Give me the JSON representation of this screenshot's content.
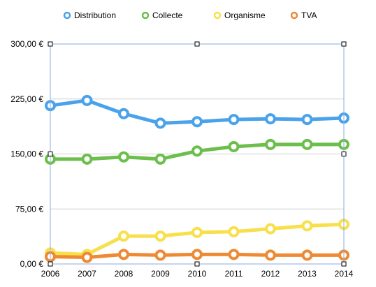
{
  "chart_data": {
    "type": "line",
    "x": [
      "2006",
      "2007",
      "2008",
      "2009",
      "2010",
      "2011",
      "2012",
      "2013",
      "2014"
    ],
    "ylim": [
      0,
      300
    ],
    "yticks": [
      0,
      75,
      150,
      225,
      300
    ],
    "ytick_labels": [
      "0,00 €",
      "75,00 €",
      "150,00 €",
      "225,00 €",
      "300,00 €"
    ],
    "grid": "horizontal",
    "legend_position": "top",
    "series": [
      {
        "name": "Distribution",
        "color": "#4aa3ea",
        "values": [
          216,
          223,
          205,
          192,
          194,
          197,
          198,
          197,
          199
        ]
      },
      {
        "name": "Collecte",
        "color": "#6cbf4c",
        "values": [
          143,
          143,
          146,
          143,
          154,
          160,
          163,
          163,
          163
        ]
      },
      {
        "name": "Organisme",
        "color": "#f8e04c",
        "values": [
          15,
          13,
          38,
          38,
          43,
          44,
          48,
          52,
          54
        ]
      },
      {
        "name": "TVA",
        "color": "#ee8a34",
        "values": [
          10,
          9,
          13,
          12,
          13,
          13,
          12,
          12,
          12
        ]
      }
    ]
  }
}
